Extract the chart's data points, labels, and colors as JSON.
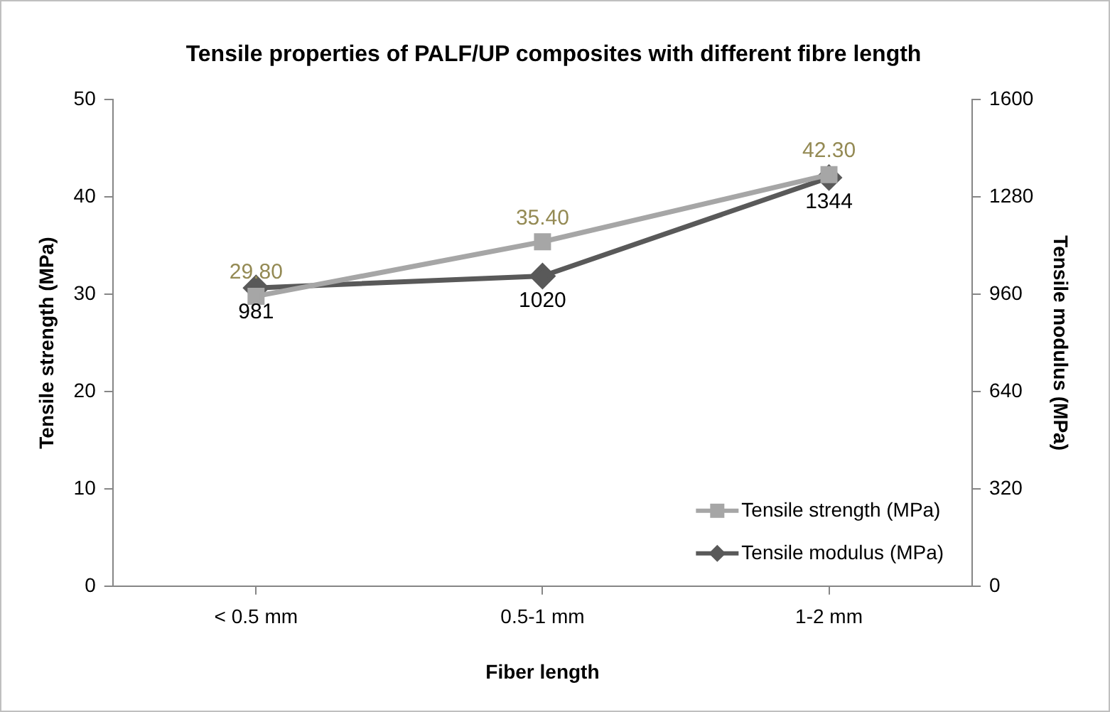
{
  "chart_data": {
    "type": "line",
    "title": "Tensile properties of PALF/UP composites with different fibre length",
    "xlabel": "Fiber length",
    "ylabel": "Tensile strength (MPa)",
    "y2label": "Tensile modulus (MPa)",
    "categories": [
      "< 0.5 mm",
      "0.5-1 mm",
      "1-2 mm"
    ],
    "series": [
      {
        "name": "Tensile strength (MPa)",
        "color": "#a6a6a6",
        "marker": "square",
        "values": [
          29.8,
          35.4,
          42.3
        ],
        "value_labels": [
          "29.80",
          "35.40",
          "42.30"
        ]
      },
      {
        "name": "Tensile modulus (MPa)",
        "color": "#595959",
        "marker": "diamond",
        "axis": "y2",
        "values": [
          981,
          1020,
          1344
        ],
        "value_labels": [
          "981",
          "1020",
          "1344"
        ]
      }
    ],
    "ylim": [
      0,
      50
    ],
    "yticks": [
      0,
      10,
      20,
      30,
      40,
      50
    ],
    "y2lim": [
      0,
      1600
    ],
    "y2ticks": [
      0,
      320,
      640,
      960,
      1280,
      1600
    ],
    "legend": "bottom right",
    "line_style": "solid"
  }
}
